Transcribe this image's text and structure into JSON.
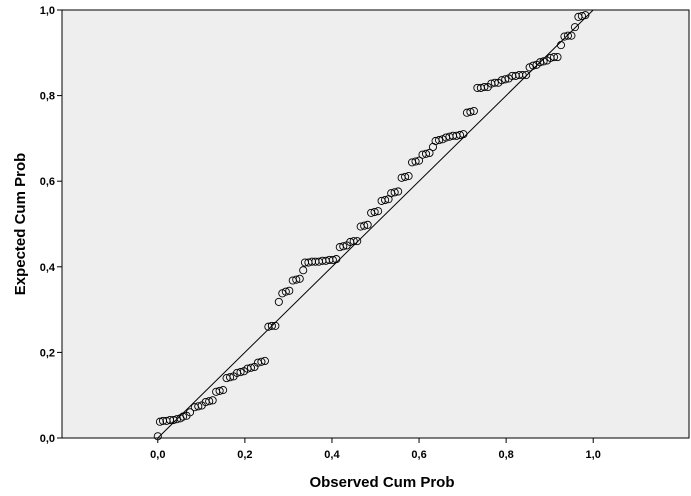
{
  "chart_data": {
    "type": "scatter",
    "title": "",
    "xlabel": "Observed Cum Prob",
    "ylabel": "Expected Cum Prob",
    "xlim": [
      -0.22,
      1.22
    ],
    "ylim": [
      0.0,
      1.0
    ],
    "x_ticks": [
      "0,0",
      "0,2",
      "0,4",
      "0,6",
      "0,8",
      "1,0"
    ],
    "x_tick_values": [
      0.0,
      0.2,
      0.4,
      0.6,
      0.8,
      1.0
    ],
    "y_ticks": [
      "0,0",
      "0,2",
      "0,4",
      "0,6",
      "0,8",
      "1,0"
    ],
    "y_tick_values": [
      0.0,
      0.2,
      0.4,
      0.6,
      0.8,
      1.0
    ],
    "grid": false,
    "reference_line": [
      [
        0.0,
        0.0
      ],
      [
        1.0,
        1.0
      ]
    ],
    "background_color": "#eeeeee",
    "marker": "open-circle",
    "points": [
      [
        0.0,
        0.004
      ],
      [
        0.005,
        0.038
      ],
      [
        0.012,
        0.04
      ],
      [
        0.02,
        0.04
      ],
      [
        0.028,
        0.042
      ],
      [
        0.036,
        0.042
      ],
      [
        0.044,
        0.044
      ],
      [
        0.052,
        0.046
      ],
      [
        0.058,
        0.05
      ],
      [
        0.066,
        0.052
      ],
      [
        0.074,
        0.06
      ],
      [
        0.085,
        0.072
      ],
      [
        0.093,
        0.074
      ],
      [
        0.101,
        0.076
      ],
      [
        0.11,
        0.084
      ],
      [
        0.118,
        0.086
      ],
      [
        0.126,
        0.088
      ],
      [
        0.134,
        0.108
      ],
      [
        0.142,
        0.11
      ],
      [
        0.15,
        0.112
      ],
      [
        0.158,
        0.14
      ],
      [
        0.166,
        0.142
      ],
      [
        0.174,
        0.144
      ],
      [
        0.182,
        0.152
      ],
      [
        0.19,
        0.154
      ],
      [
        0.198,
        0.156
      ],
      [
        0.206,
        0.162
      ],
      [
        0.214,
        0.164
      ],
      [
        0.222,
        0.166
      ],
      [
        0.23,
        0.176
      ],
      [
        0.238,
        0.178
      ],
      [
        0.246,
        0.18
      ],
      [
        0.254,
        0.26
      ],
      [
        0.262,
        0.262
      ],
      [
        0.27,
        0.262
      ],
      [
        0.278,
        0.318
      ],
      [
        0.286,
        0.338
      ],
      [
        0.294,
        0.342
      ],
      [
        0.302,
        0.344
      ],
      [
        0.31,
        0.368
      ],
      [
        0.318,
        0.37
      ],
      [
        0.326,
        0.372
      ],
      [
        0.334,
        0.392
      ],
      [
        0.338,
        0.41
      ],
      [
        0.346,
        0.41
      ],
      [
        0.354,
        0.412
      ],
      [
        0.362,
        0.412
      ],
      [
        0.37,
        0.412
      ],
      [
        0.378,
        0.414
      ],
      [
        0.386,
        0.414
      ],
      [
        0.394,
        0.416
      ],
      [
        0.402,
        0.416
      ],
      [
        0.41,
        0.418
      ],
      [
        0.418,
        0.446
      ],
      [
        0.426,
        0.448
      ],
      [
        0.434,
        0.45
      ],
      [
        0.442,
        0.458
      ],
      [
        0.45,
        0.46
      ],
      [
        0.458,
        0.46
      ],
      [
        0.466,
        0.494
      ],
      [
        0.474,
        0.496
      ],
      [
        0.482,
        0.498
      ],
      [
        0.49,
        0.526
      ],
      [
        0.498,
        0.528
      ],
      [
        0.506,
        0.53
      ],
      [
        0.514,
        0.554
      ],
      [
        0.522,
        0.556
      ],
      [
        0.53,
        0.558
      ],
      [
        0.536,
        0.572
      ],
      [
        0.544,
        0.574
      ],
      [
        0.552,
        0.576
      ],
      [
        0.56,
        0.608
      ],
      [
        0.568,
        0.61
      ],
      [
        0.576,
        0.612
      ],
      [
        0.584,
        0.644
      ],
      [
        0.592,
        0.646
      ],
      [
        0.6,
        0.648
      ],
      [
        0.608,
        0.662
      ],
      [
        0.616,
        0.664
      ],
      [
        0.624,
        0.666
      ],
      [
        0.632,
        0.68
      ],
      [
        0.638,
        0.694
      ],
      [
        0.646,
        0.696
      ],
      [
        0.654,
        0.698
      ],
      [
        0.662,
        0.702
      ],
      [
        0.67,
        0.704
      ],
      [
        0.678,
        0.706
      ],
      [
        0.686,
        0.706
      ],
      [
        0.694,
        0.708
      ],
      [
        0.702,
        0.71
      ],
      [
        0.71,
        0.76
      ],
      [
        0.718,
        0.762
      ],
      [
        0.726,
        0.764
      ],
      [
        0.734,
        0.818
      ],
      [
        0.742,
        0.818
      ],
      [
        0.75,
        0.82
      ],
      [
        0.758,
        0.82
      ],
      [
        0.766,
        0.828
      ],
      [
        0.774,
        0.83
      ],
      [
        0.782,
        0.83
      ],
      [
        0.79,
        0.836
      ],
      [
        0.798,
        0.838
      ],
      [
        0.806,
        0.84
      ],
      [
        0.814,
        0.846
      ],
      [
        0.822,
        0.846
      ],
      [
        0.83,
        0.848
      ],
      [
        0.838,
        0.848
      ],
      [
        0.846,
        0.848
      ],
      [
        0.854,
        0.866
      ],
      [
        0.862,
        0.87
      ],
      [
        0.87,
        0.872
      ],
      [
        0.878,
        0.878
      ],
      [
        0.886,
        0.88
      ],
      [
        0.894,
        0.882
      ],
      [
        0.902,
        0.888
      ],
      [
        0.91,
        0.89
      ],
      [
        0.918,
        0.89
      ],
      [
        0.926,
        0.918
      ],
      [
        0.934,
        0.938
      ],
      [
        0.942,
        0.94
      ],
      [
        0.95,
        0.94
      ],
      [
        0.958,
        0.96
      ],
      [
        0.966,
        0.984
      ],
      [
        0.974,
        0.986
      ],
      [
        0.982,
        0.988
      ]
    ]
  }
}
